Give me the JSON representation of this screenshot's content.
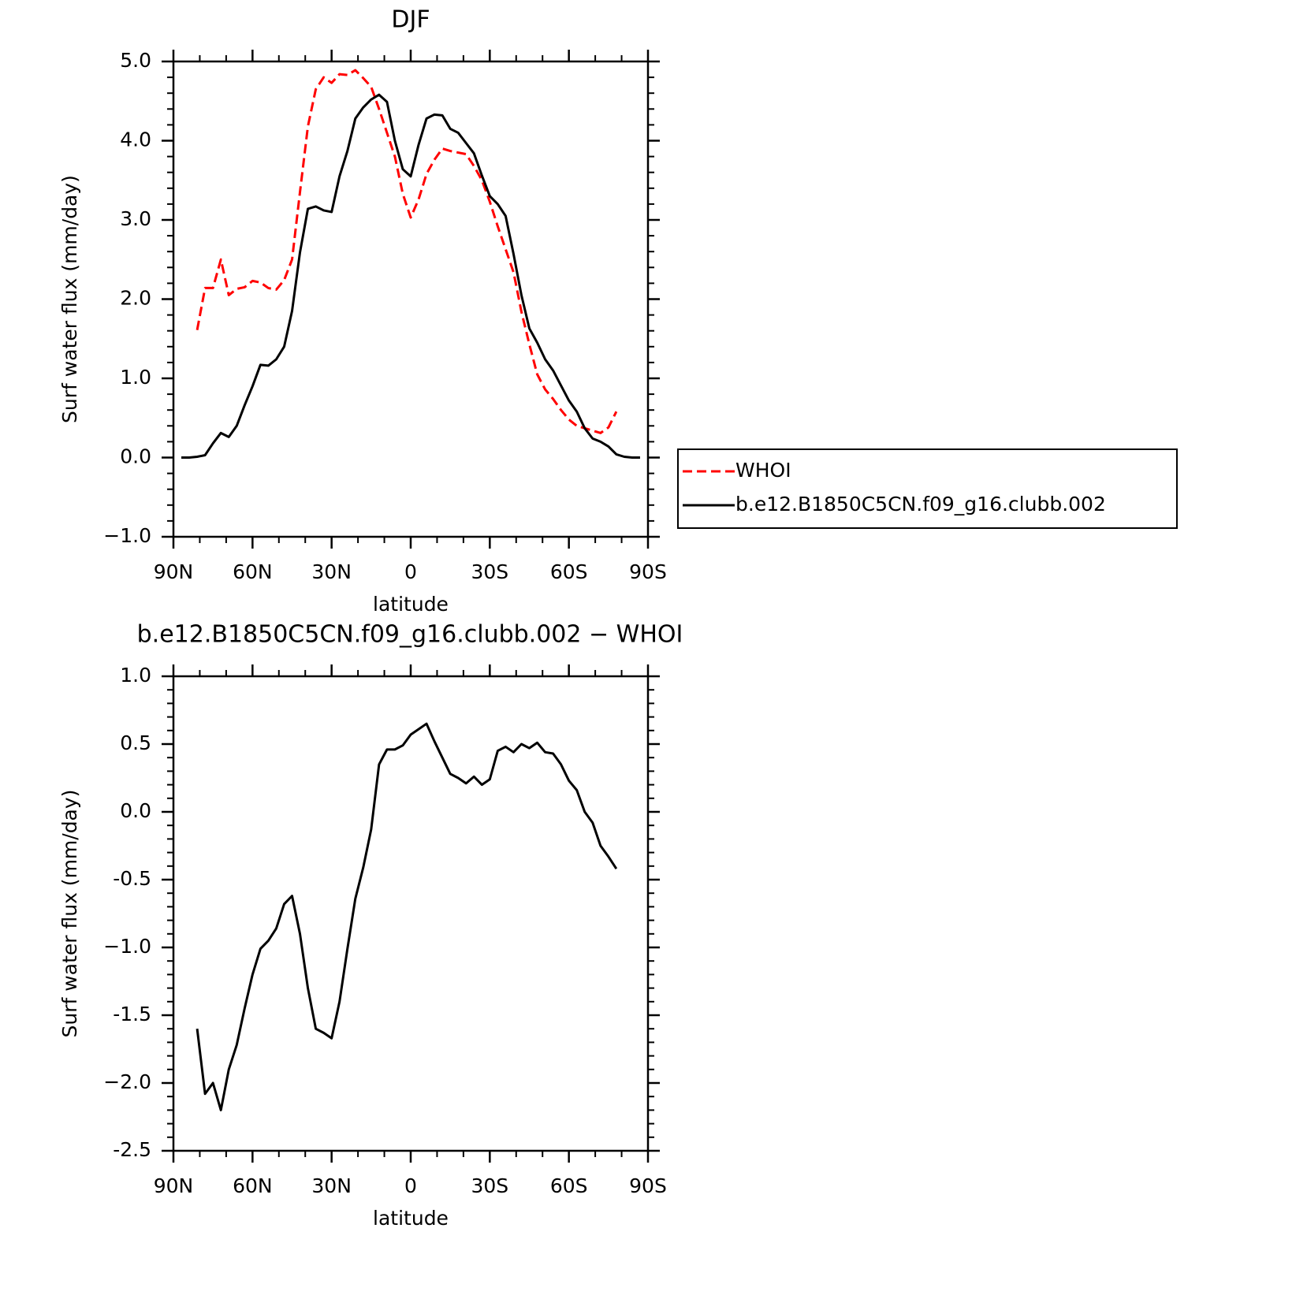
{
  "chart_data": [
    {
      "type": "line",
      "title": "DJF",
      "xlabel": "latitude",
      "ylabel": "Surf water flux (mm/day)",
      "x": [
        87,
        84,
        81,
        78,
        75,
        72,
        69,
        66,
        63,
        60,
        57,
        54,
        51,
        48,
        45,
        42,
        39,
        36,
        33,
        30,
        27,
        24,
        21,
        18,
        15,
        12,
        9,
        6,
        3,
        0,
        -3,
        -6,
        -9,
        -12,
        -15,
        -18,
        -21,
        -24,
        -27,
        -30,
        -33,
        -36,
        -39,
        -42,
        -45,
        -48,
        -51,
        -54,
        -57,
        -60,
        -63,
        -66,
        -69,
        -72,
        -75,
        -78,
        -81,
        -84,
        -87
      ],
      "series": [
        {
          "name": "WHOI",
          "color": "#ff0000",
          "dash": true,
          "values": [
            null,
            null,
            1.61,
            2.14,
            2.14,
            2.5,
            2.05,
            2.13,
            2.15,
            2.23,
            2.21,
            2.14,
            2.12,
            2.24,
            2.5,
            3.35,
            4.18,
            4.65,
            4.8,
            4.73,
            4.84,
            4.83,
            4.89,
            4.79,
            4.68,
            4.4,
            4.1,
            3.8,
            3.33,
            3.03,
            3.26,
            3.58,
            3.76,
            3.9,
            3.87,
            3.85,
            3.83,
            3.68,
            3.5,
            3.23,
            2.92,
            2.63,
            2.34,
            1.84,
            1.43,
            1.05,
            0.86,
            0.74,
            0.6,
            0.48,
            0.4,
            0.37,
            0.34,
            0.31,
            0.38,
            0.58,
            null,
            null,
            null
          ]
        },
        {
          "name": "b.e12.B1850C5CN.f09_g16.clubb.002",
          "color": "#000000",
          "dash": false,
          "values": [
            0,
            0,
            0.01,
            0.03,
            0.18,
            0.31,
            0.26,
            0.4,
            0.66,
            0.9,
            1.17,
            1.16,
            1.24,
            1.4,
            1.85,
            2.59,
            3.14,
            3.17,
            3.12,
            3.1,
            3.55,
            3.87,
            4.28,
            4.42,
            4.52,
            4.58,
            4.49,
            4.0,
            3.64,
            3.55,
            3.95,
            4.28,
            4.33,
            4.32,
            4.15,
            4.1,
            3.97,
            3.84,
            3.56,
            3.3,
            3.2,
            3.05,
            2.57,
            2.05,
            1.63,
            1.45,
            1.24,
            1.1,
            0.91,
            0.72,
            0.58,
            0.37,
            0.24,
            0.2,
            0.14,
            0.04,
            0.01,
            0,
            0
          ]
        }
      ],
      "xlim": [
        90,
        -90
      ],
      "xticks": [
        {
          "value": 90,
          "label": "90N"
        },
        {
          "value": 60,
          "label": "60N"
        },
        {
          "value": 30,
          "label": "30N"
        },
        0,
        {
          "value": -30,
          "label": "30S"
        },
        {
          "value": -60,
          "label": "60S"
        },
        {
          "value": -90,
          "label": "90S"
        }
      ],
      "xminorticks": [
        80,
        70,
        50,
        40,
        20,
        10,
        -10,
        -20,
        -40,
        -50,
        -70,
        -80
      ],
      "ylim": [
        -1,
        5
      ],
      "yticks": [
        {
          "value": 5,
          "label": "5.0"
        },
        {
          "value": 4,
          "label": "4.0"
        },
        {
          "value": 3,
          "label": "3.0"
        },
        {
          "value": 2,
          "label": "2.0"
        },
        {
          "value": 1,
          "label": "1.0"
        },
        {
          "value": 0,
          "label": "0.0"
        },
        {
          "value": -1,
          "label": "−1.0"
        }
      ],
      "yminorticks": [
        4.8,
        4.6,
        4.4,
        4.2,
        3.8,
        3.6,
        3.4,
        3.2,
        2.8,
        2.6,
        2.4,
        2.2,
        1.8,
        1.6,
        1.4,
        1.2,
        0.8,
        0.6,
        0.4,
        0.2,
        -0.2,
        -0.4,
        -0.6,
        -0.8
      ],
      "legend": "right"
    },
    {
      "type": "line",
      "title": "b.e12.B1850C5CN.f09_g16.clubb.002 − WHOI",
      "xlabel": "latitude",
      "ylabel": "Surf water flux (mm/day)",
      "x": [
        87,
        84,
        81,
        78,
        75,
        72,
        69,
        66,
        63,
        60,
        57,
        54,
        51,
        48,
        45,
        42,
        39,
        36,
        33,
        30,
        27,
        24,
        21,
        18,
        15,
        12,
        9,
        6,
        3,
        0,
        -3,
        -6,
        -9,
        -12,
        -15,
        -18,
        -21,
        -24,
        -27,
        -30,
        -33,
        -36,
        -39,
        -42,
        -45,
        -48,
        -51,
        -54,
        -57,
        -60,
        -63,
        -66,
        -69,
        -72,
        -75,
        -78,
        -81,
        -84,
        -87
      ],
      "series": [
        {
          "color": "#000000",
          "dash": false,
          "values": [
            null,
            null,
            -1.6,
            -2.08,
            -2.0,
            -2.2,
            -1.9,
            -1.72,
            -1.45,
            -1.2,
            -1.01,
            -0.95,
            -0.86,
            -0.68,
            -0.62,
            -0.9,
            -1.3,
            -1.6,
            -1.63,
            -1.67,
            -1.4,
            -1.01,
            -0.64,
            -0.41,
            -0.13,
            0.35,
            0.46,
            0.46,
            0.49,
            0.57,
            0.61,
            0.65,
            0.52,
            0.4,
            0.28,
            0.25,
            0.21,
            0.26,
            0.2,
            0.24,
            0.45,
            0.48,
            0.44,
            0.5,
            0.47,
            0.51,
            0.44,
            0.43,
            0.35,
            0.23,
            0.16,
            0.0,
            -0.08,
            -0.25,
            -0.33,
            -0.42,
            null,
            null,
            null
          ]
        }
      ],
      "xlim": [
        90,
        -90
      ],
      "xticks": [
        {
          "value": 90,
          "label": "90N"
        },
        {
          "value": 60,
          "label": "60N"
        },
        {
          "value": 30,
          "label": "30N"
        },
        0,
        {
          "value": -30,
          "label": "30S"
        },
        {
          "value": -60,
          "label": "60S"
        },
        {
          "value": -90,
          "label": "90S"
        }
      ],
      "xminorticks": [
        80,
        70,
        50,
        40,
        20,
        10,
        -10,
        -20,
        -40,
        -50,
        -70,
        -80
      ],
      "ylim": [
        -2.5,
        1
      ],
      "yticks": [
        {
          "value": 1,
          "label": "1.0"
        },
        0.5,
        {
          "value": 0,
          "label": "0.0"
        },
        -0.5,
        {
          "value": -1,
          "label": "−1.0"
        },
        -1.5,
        {
          "value": -2,
          "label": "−2.0"
        },
        -2.5
      ],
      "yminorticks": [
        0.9,
        0.8,
        0.7,
        0.6,
        0.4,
        0.3,
        0.2,
        0.1,
        -0.1,
        -0.2,
        -0.3,
        -0.4,
        -0.6,
        -0.7,
        -0.8,
        -0.9,
        -1.1,
        -1.2,
        -1.3,
        -1.4,
        -1.6,
        -1.7,
        -1.8,
        -1.9,
        -2.1,
        -2.2,
        -2.3,
        -2.4
      ]
    }
  ]
}
